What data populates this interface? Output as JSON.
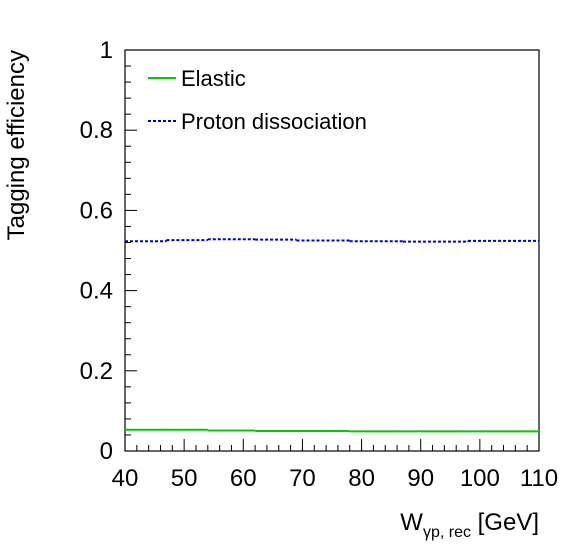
{
  "chart_data": {
    "type": "line",
    "xlabel": {
      "base": "W",
      "subscript": "γp, rec",
      "unit": " [GeV]"
    },
    "ylabel": "Tagging efficiency",
    "xlim": [
      40,
      110
    ],
    "ylim": [
      0,
      1
    ],
    "x_ticks": [
      40,
      50,
      60,
      70,
      80,
      90,
      100,
      110
    ],
    "x_tick_labels": [
      "40",
      "50",
      "60",
      "70",
      "80",
      "90",
      "100",
      "110"
    ],
    "y_ticks": [
      0,
      0.2,
      0.4,
      0.6,
      0.8,
      1
    ],
    "y_tick_labels": [
      "0",
      "0.2",
      "0.4",
      "0.6",
      "0.8",
      "1"
    ],
    "legend_position": "top-left",
    "grid": false,
    "series": [
      {
        "name": "Elastic",
        "color": "#00cc00",
        "style": "solid",
        "bin_edges": [
          40,
          47,
          54,
          62,
          69,
          78,
          87,
          98,
          110
        ],
        "values": [
          0.053,
          0.053,
          0.051,
          0.05,
          0.05,
          0.049,
          0.049,
          0.049
        ]
      },
      {
        "name": "Proton dissociation",
        "color": "#0000cc",
        "style": "dotted",
        "bin_edges": [
          40,
          47,
          54,
          62,
          69,
          78,
          87,
          98,
          110
        ],
        "values": [
          0.523,
          0.526,
          0.528,
          0.527,
          0.525,
          0.523,
          0.522,
          0.524
        ]
      }
    ]
  }
}
